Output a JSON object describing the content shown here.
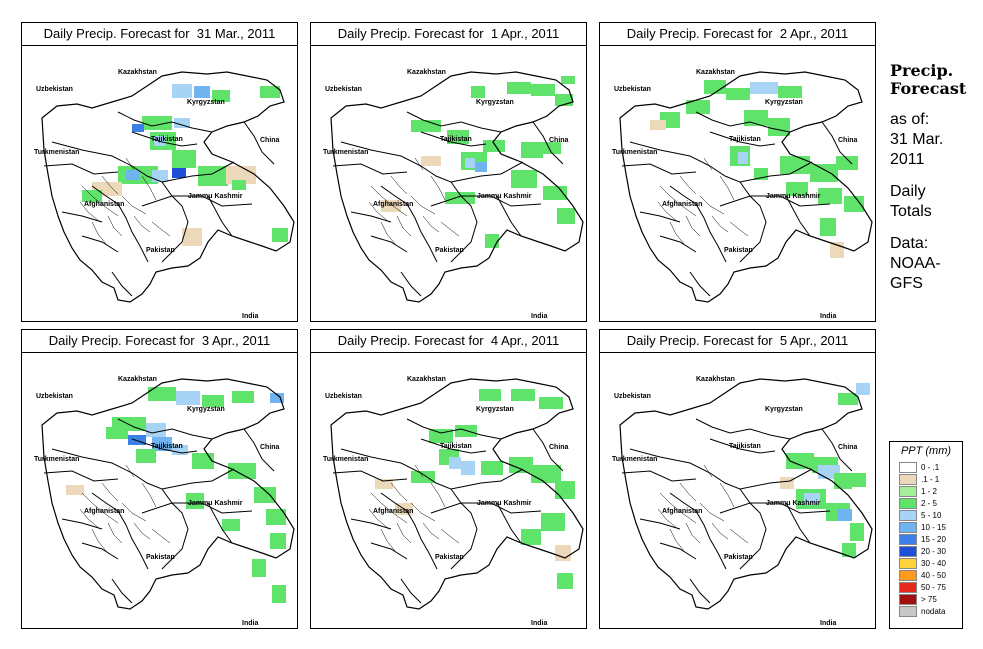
{
  "panels": [
    {
      "title": "Daily Precip. Forecast for  31 Mar., 2011"
    },
    {
      "title": "Daily Precip. Forecast for  1 Apr., 2011"
    },
    {
      "title": "Daily Precip. Forecast for  2 Apr., 2011"
    },
    {
      "title": "Daily Precip. Forecast for  3 Apr., 2011"
    },
    {
      "title": "Daily Precip. Forecast for  4 Apr., 2011"
    },
    {
      "title": "Daily Precip. Forecast for  5 Apr., 2011"
    }
  ],
  "map_labels": {
    "kazakhstan": "Kazakhstan",
    "uzbekistan": "Uzbekistan",
    "kyrgyzstan": "Kyrgyzstan",
    "tajikistan": "Tajikistan",
    "turkmenistan": "Turkmenistan",
    "china": "China",
    "afghanistan": "Afghanistan",
    "jammu_kashmir": "Jammu Kashmir",
    "pakistan": "Pakistan",
    "india": "India"
  },
  "info": {
    "title_line1": "Precip.",
    "title_line2": "Forecast",
    "asof_line1": "as of:",
    "asof_line2": "31 Mar.",
    "asof_line3": "2011",
    "totals_line1": "Daily",
    "totals_line2": "Totals",
    "data_line1": "Data:",
    "data_line2": "NOAA-",
    "data_line3": "GFS"
  },
  "legend": {
    "title": "PPT (mm)",
    "items": [
      {
        "label": "0 - .1",
        "color": "#ffffff"
      },
      {
        "label": ".1 - 1",
        "color": "#ecd9b9"
      },
      {
        "label": "1 - 2",
        "color": "#a6ef9a"
      },
      {
        "label": "2 - 5",
        "color": "#5fe36b"
      },
      {
        "label": "5 - 10",
        "color": "#a7d4f5"
      },
      {
        "label": "10 - 15",
        "color": "#6fb3f0"
      },
      {
        "label": "15 - 20",
        "color": "#3c7fe6"
      },
      {
        "label": "20 - 30",
        "color": "#1f4fd8"
      },
      {
        "label": "30 - 40",
        "color": "#ffd23c"
      },
      {
        "label": "40 - 50",
        "color": "#ff9a1f"
      },
      {
        "label": "50 - 75",
        "color": "#e6281e"
      },
      {
        "label": "> 75",
        "color": "#a01010"
      },
      {
        "label": "nodata",
        "color": "#c8c8c8"
      }
    ]
  }
}
